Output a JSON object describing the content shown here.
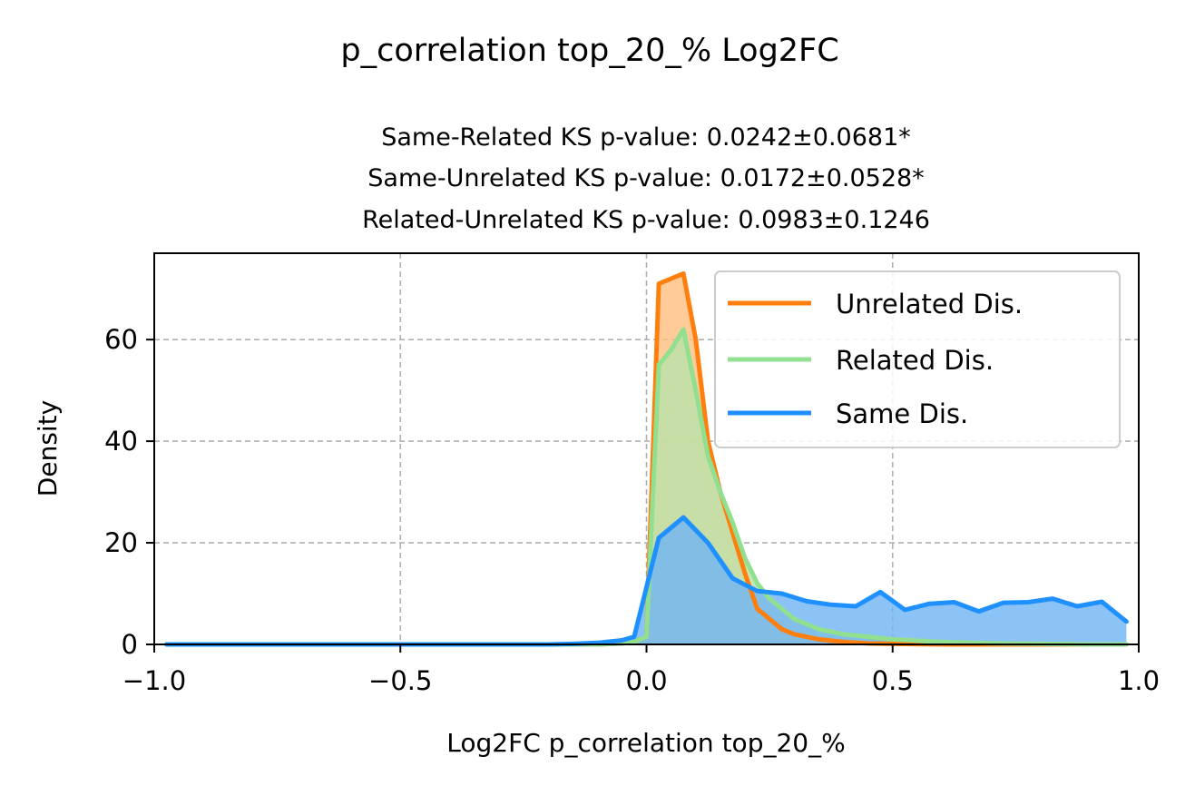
{
  "suptitle": "p_correlation top_20_% Log2FC",
  "chart_data": {
    "type": "area",
    "title_lines": [
      "Same-Related KS p-value: 0.0242±0.0681*",
      "Same-Unrelated KS p-value: 0.0172±0.0528*",
      "Related-Unrelated KS p-value: 0.0983±0.1246"
    ],
    "xlabel": "Log2FC p_correlation top_20_%",
    "ylabel": "Density",
    "xlim": [
      -1.0,
      1.0
    ],
    "ylim": [
      0,
      77
    ],
    "xticks": [
      -1.0,
      -0.5,
      0.0,
      0.5,
      1.0
    ],
    "xtick_labels": [
      "−1.0",
      "−0.5",
      "0.0",
      "0.5",
      "1.0"
    ],
    "yticks": [
      0,
      20,
      40,
      60
    ],
    "ytick_labels": [
      "0",
      "20",
      "40",
      "60"
    ],
    "grid": true,
    "legend_position": "top-right",
    "series": [
      {
        "name": "Unrelated Dis.",
        "color": "#ff7f0e",
        "fill": "#ffbe7f",
        "x": [
          -0.975,
          -0.5,
          -0.2,
          -0.1,
          -0.05,
          -0.025,
          0.0,
          0.025,
          0.05,
          0.075,
          0.1,
          0.125,
          0.15,
          0.175,
          0.2,
          0.225,
          0.25,
          0.275,
          0.3,
          0.35,
          0.4,
          0.45,
          0.5,
          0.6,
          0.7,
          0.8,
          0.9,
          0.975
        ],
        "y": [
          0,
          0,
          0,
          0,
          0.2,
          0.5,
          1.5,
          71,
          72,
          73,
          60,
          40,
          30,
          22,
          14,
          7,
          5,
          3,
          2,
          1,
          0.5,
          0.2,
          0.1,
          0,
          0,
          0,
          0,
          0
        ]
      },
      {
        "name": "Related Dis.",
        "color": "#90e090",
        "fill": "#b9e3a9",
        "x": [
          -0.975,
          -0.5,
          -0.2,
          -0.1,
          -0.05,
          -0.025,
          0.0,
          0.025,
          0.05,
          0.075,
          0.1,
          0.125,
          0.15,
          0.175,
          0.2,
          0.225,
          0.25,
          0.275,
          0.3,
          0.35,
          0.4,
          0.45,
          0.5,
          0.6,
          0.7,
          0.8,
          0.9,
          0.975
        ],
        "y": [
          0,
          0,
          0,
          0,
          0.2,
          0.5,
          1.5,
          55,
          58,
          62,
          50,
          37,
          30,
          24,
          17,
          12,
          9,
          7,
          5,
          3,
          2,
          1.5,
          1,
          0.5,
          0.2,
          0.1,
          0,
          0
        ]
      },
      {
        "name": "Same Dis.",
        "color": "#1e90ff",
        "fill": "#6fb4f4",
        "x": [
          -0.975,
          -0.5,
          -0.2,
          -0.15,
          -0.1,
          -0.05,
          -0.025,
          0.025,
          0.075,
          0.125,
          0.175,
          0.225,
          0.275,
          0.325,
          0.375,
          0.425,
          0.475,
          0.525,
          0.575,
          0.625,
          0.675,
          0.725,
          0.775,
          0.825,
          0.875,
          0.925,
          0.975
        ],
        "y": [
          0,
          0,
          0,
          0.1,
          0.3,
          0.8,
          1.5,
          21,
          25,
          20,
          13,
          10.5,
          10,
          8.5,
          7.8,
          7.5,
          10.3,
          6.8,
          8,
          8.3,
          6.5,
          8.2,
          8.3,
          9,
          7.5,
          8.4,
          4.5
        ]
      }
    ]
  }
}
